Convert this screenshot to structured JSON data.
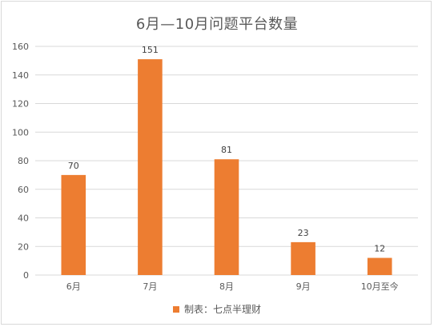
{
  "chart_data": {
    "type": "bar",
    "title": "6月—10月问题平台数量",
    "categories": [
      "6月",
      "7月",
      "8月",
      "9月",
      "10月至今"
    ],
    "series": [
      {
        "name": "制表：七点半理财",
        "values": [
          70,
          151,
          81,
          23,
          12
        ],
        "color": "#ed7d31"
      }
    ],
    "ylim": [
      0,
      160
    ],
    "yticks": [
      "0",
      "20",
      "40",
      "60",
      "80",
      "100",
      "120",
      "140",
      "160"
    ],
    "grid": true,
    "legend_position": "bottom",
    "data_labels": true
  }
}
